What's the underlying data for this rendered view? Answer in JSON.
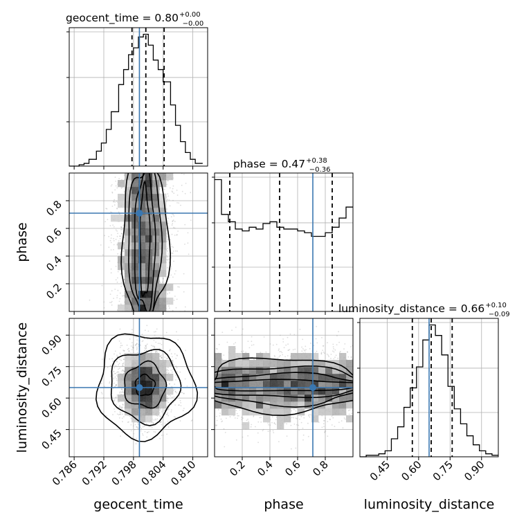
{
  "chart_data": {
    "type": "corner",
    "parameters": [
      {
        "name": "geocent_time",
        "xlabel": "geocent_time",
        "title": "geocent_time = 0.80",
        "median": "0.80",
        "err_plus": "+0.00",
        "err_minus": "−0.00",
        "range": [
          0.785,
          0.813
        ],
        "ticks": [
          "0.786",
          "0.792",
          "0.798",
          "0.804",
          "0.810"
        ],
        "tick_values": [
          0.786,
          0.792,
          0.798,
          0.804,
          0.81
        ],
        "quantiles": [
          0.7977,
          0.8005,
          0.8042
        ],
        "truth": 0.7992,
        "hist_edges": [
          0.785,
          0.787,
          0.788,
          0.789,
          0.7905,
          0.7915,
          0.7925,
          0.7935,
          0.795,
          0.796,
          0.797,
          0.798,
          0.799,
          0.8,
          0.801,
          0.802,
          0.803,
          0.804,
          0.8055,
          0.8065,
          0.8075,
          0.8085,
          0.8095,
          0.8105,
          0.812
        ],
        "hist_values": [
          0,
          1,
          2,
          5,
          11,
          17,
          27,
          40,
          60,
          71,
          82,
          87,
          95,
          97,
          89,
          78,
          71,
          62,
          45,
          30,
          18,
          10,
          5,
          2
        ]
      },
      {
        "name": "phase",
        "xlabel": "phase",
        "ylabel": "phase",
        "title": "phase = 0.47",
        "median": "0.47",
        "err_plus": "+0.38",
        "err_minus": "−0.36",
        "range": [
          0.0,
          1.0
        ],
        "ticks": [
          "0.2",
          "0.4",
          "0.6",
          "0.8"
        ],
        "tick_values": [
          0.2,
          0.4,
          0.6,
          0.8
        ],
        "quantiles": [
          0.11,
          0.47,
          0.85
        ],
        "truth": 0.71,
        "hist_edges": [
          0,
          0.05,
          0.1,
          0.15,
          0.2,
          0.25,
          0.3,
          0.35,
          0.4,
          0.45,
          0.5,
          0.55,
          0.6,
          0.65,
          0.7,
          0.75,
          0.8,
          0.85,
          0.9,
          0.95,
          1.0
        ],
        "hist_values": [
          72,
          53,
          49,
          45,
          44,
          46,
          45,
          48,
          49,
          46,
          45,
          45,
          44,
          43,
          41,
          41,
          43,
          46,
          51,
          57
        ]
      },
      {
        "name": "luminosity_distance",
        "xlabel": "luminosity_distance",
        "ylabel": "luminosity_distance",
        "title": "luminosity_distance = 0.66",
        "median": "0.66",
        "err_plus": "+0.10",
        "err_minus": "−0.09",
        "range": [
          0.32,
          0.98
        ],
        "ticks": [
          "0.45",
          "0.60",
          "0.75",
          "0.90"
        ],
        "tick_values": [
          0.45,
          0.6,
          0.75,
          0.9
        ],
        "quantiles": [
          0.57,
          0.66,
          0.76
        ],
        "truth": 0.65,
        "hist_edges": [
          0.32,
          0.35,
          0.38,
          0.41,
          0.44,
          0.47,
          0.5,
          0.53,
          0.56,
          0.59,
          0.62,
          0.65,
          0.68,
          0.71,
          0.74,
          0.77,
          0.8,
          0.83,
          0.86,
          0.89,
          0.92,
          0.95,
          0.98
        ],
        "hist_values": [
          0,
          1,
          1,
          2,
          4,
          12,
          20,
          33,
          46,
          60,
          78,
          88,
          81,
          68,
          47,
          32,
          22,
          14,
          8,
          4,
          2,
          1
        ]
      }
    ],
    "panels_2d": [
      {
        "x": "geocent_time",
        "y": "phase"
      },
      {
        "x": "geocent_time",
        "y": "luminosity_distance"
      },
      {
        "x": "phase",
        "y": "luminosity_distance"
      }
    ],
    "truth_color": "#3a77b0",
    "grid": true
  }
}
